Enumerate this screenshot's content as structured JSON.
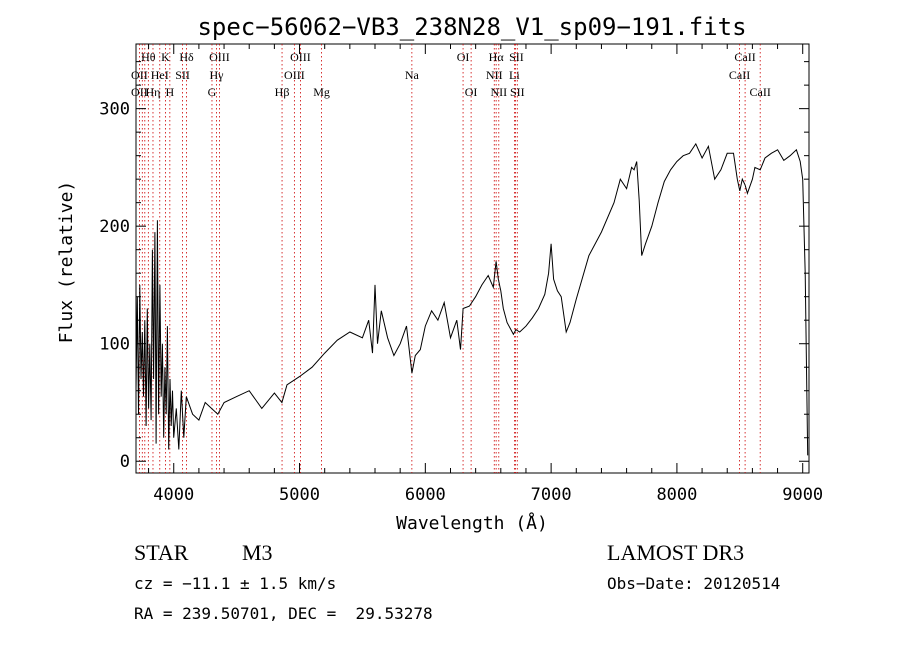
{
  "chart_data": {
    "type": "line",
    "title": "spec−56062−VB3_238N28_V1_sp09−191.fits",
    "xlabel": "Wavelength (Å)",
    "ylabel": "Flux (relative)",
    "xlim": [
      3700,
      9050
    ],
    "ylim": [
      -10,
      355
    ],
    "xticks": [
      4000,
      5000,
      6000,
      7000,
      8000,
      9000
    ],
    "yticks": [
      0,
      100,
      200,
      300
    ],
    "grid": false,
    "series": [
      {
        "name": "spectrum",
        "x": [
          3700,
          3710,
          3720,
          3730,
          3740,
          3750,
          3760,
          3770,
          3780,
          3790,
          3800,
          3810,
          3820,
          3830,
          3840,
          3850,
          3860,
          3870,
          3880,
          3890,
          3900,
          3910,
          3920,
          3930,
          3940,
          3950,
          3960,
          3970,
          3980,
          3990,
          4000,
          4020,
          4040,
          4060,
          4080,
          4100,
          4150,
          4200,
          4250,
          4300,
          4350,
          4400,
          4500,
          4600,
          4700,
          4800,
          4860,
          4900,
          5000,
          5100,
          5200,
          5300,
          5400,
          5500,
          5550,
          5580,
          5600,
          5620,
          5650,
          5700,
          5750,
          5800,
          5850,
          5893,
          5920,
          5960,
          6000,
          6050,
          6100,
          6150,
          6200,
          6250,
          6280,
          6300,
          6350,
          6400,
          6450,
          6500,
          6540,
          6563,
          6580,
          6600,
          6620,
          6650,
          6680,
          6700,
          6720,
          6750,
          6800,
          6850,
          6900,
          6950,
          6980,
          7000,
          7020,
          7050,
          7080,
          7100,
          7120,
          7150,
          7200,
          7300,
          7400,
          7500,
          7550,
          7600,
          7640,
          7660,
          7680,
          7700,
          7720,
          7750,
          7800,
          7850,
          7900,
          7950,
          8000,
          8050,
          8100,
          8150,
          8200,
          8250,
          8300,
          8350,
          8400,
          8450,
          8480,
          8500,
          8520,
          8542,
          8560,
          8600,
          8620,
          8662,
          8700,
          8750,
          8800,
          8850,
          8900,
          8950,
          8980,
          9000,
          9020,
          9040
        ],
        "y": [
          60,
          140,
          40,
          150,
          70,
          110,
          55,
          120,
          30,
          130,
          45,
          100,
          35,
          180,
          70,
          195,
          15,
          205,
          40,
          150,
          55,
          100,
          20,
          80,
          40,
          115,
          10,
          70,
          30,
          60,
          20,
          45,
          10,
          60,
          20,
          55,
          40,
          35,
          50,
          45,
          40,
          50,
          55,
          60,
          45,
          58,
          50,
          65,
          72,
          80,
          92,
          103,
          110,
          105,
          120,
          92,
          150,
          100,
          128,
          105,
          90,
          100,
          115,
          75,
          90,
          95,
          115,
          128,
          120,
          135,
          105,
          120,
          95,
          130,
          132,
          140,
          150,
          158,
          148,
          170,
          155,
          145,
          130,
          118,
          112,
          108,
          112,
          110,
          115,
          122,
          130,
          142,
          160,
          185,
          155,
          145,
          140,
          125,
          110,
          118,
          138,
          175,
          195,
          220,
          240,
          232,
          250,
          248,
          255,
          222,
          175,
          185,
          200,
          220,
          238,
          248,
          255,
          260,
          262,
          270,
          258,
          268,
          240,
          248,
          262,
          262,
          240,
          230,
          240,
          235,
          228,
          240,
          250,
          248,
          258,
          262,
          265,
          256,
          260,
          265,
          255,
          240,
          160,
          5
        ],
        "color": "#000000"
      }
    ],
    "line_labels": [
      {
        "text": "Hθ",
        "x": 3798,
        "row": 0
      },
      {
        "text": "K",
        "x": 3934,
        "row": 0
      },
      {
        "text": "Hδ",
        "x": 4102,
        "row": 0
      },
      {
        "text": "OIII",
        "x": 4363,
        "row": 0
      },
      {
        "text": "OIII",
        "x": 5007,
        "row": 0
      },
      {
        "text": "OI",
        "x": 6300,
        "row": 0
      },
      {
        "text": "Hα",
        "x": 6563,
        "row": 0
      },
      {
        "text": "SII",
        "x": 6724,
        "row": 0
      },
      {
        "text": "CaII",
        "x": 8542,
        "row": 0
      },
      {
        "text": "OII",
        "x": 3727,
        "row": 1
      },
      {
        "text": "HeI",
        "x": 3889,
        "row": 1
      },
      {
        "text": "SII",
        "x": 4070,
        "row": 1
      },
      {
        "text": "Hγ",
        "x": 4340,
        "row": 1
      },
      {
        "text": "OIII",
        "x": 4959,
        "row": 1
      },
      {
        "text": "Na",
        "x": 5893,
        "row": 1
      },
      {
        "text": "NII",
        "x": 6548,
        "row": 1
      },
      {
        "text": "Li",
        "x": 6708,
        "row": 1
      },
      {
        "text": "CaII",
        "x": 8498,
        "row": 1
      },
      {
        "text": "OII",
        "x": 3727,
        "row": 2
      },
      {
        "text": "Hη",
        "x": 3835,
        "row": 2
      },
      {
        "text": "H",
        "x": 3969,
        "row": 2
      },
      {
        "text": "G",
        "x": 4304,
        "row": 2
      },
      {
        "text": "Hβ",
        "x": 4861,
        "row": 2
      },
      {
        "text": "Mg",
        "x": 5175,
        "row": 2
      },
      {
        "text": "OI",
        "x": 6364,
        "row": 2
      },
      {
        "text": "NII",
        "x": 6584,
        "row": 2
      },
      {
        "text": "SII",
        "x": 6731,
        "row": 2
      },
      {
        "text": "CaII",
        "x": 8662,
        "row": 2
      }
    ],
    "marker_lines": [
      3727,
      3750,
      3770,
      3798,
      3835,
      3889,
      3934,
      3969,
      4070,
      4102,
      4304,
      4340,
      4363,
      4861,
      4959,
      5007,
      5175,
      5893,
      6300,
      6364,
      6548,
      6563,
      6584,
      6708,
      6717,
      6731,
      8498,
      8542,
      8662
    ]
  },
  "info": {
    "object_class": "STAR",
    "subclass": "M3",
    "survey": "LAMOST DR3",
    "cz": "cz = −11.1 ± 1.5 km/s",
    "obs_date": "Obs−Date: 20120514",
    "coords": "RA = 239.50701, DEC =  29.53278"
  }
}
